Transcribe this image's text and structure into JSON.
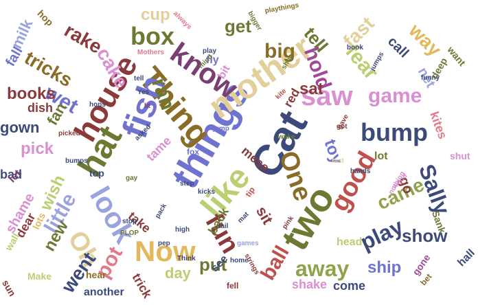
{
  "palette": {
    "navy": "#3b4a7a",
    "blue": "#6f73cf",
    "periwinkle": "#9ba3df",
    "olive": "#6b7a32",
    "green": "#8fa34a",
    "lime": "#b9cf72",
    "brown": "#8a6c26",
    "gold": "#e2b85a",
    "tan": "#e2cf99",
    "maroon": "#8a3a3a",
    "red": "#c0504d",
    "pink": "#e27a8a",
    "plum": "#7a3f72",
    "purple": "#a04a96",
    "orchid": "#d98fd0"
  },
  "words": [
    {
      "text": "Cat",
      "color": "navy"
    },
    {
      "text": "things",
      "color": "blue"
    },
    {
      "text": "Thing",
      "color": "brown"
    },
    {
      "text": "mother",
      "color": "tan"
    },
    {
      "text": "fish",
      "color": "blue"
    },
    {
      "text": "look",
      "color": "periwinkle"
    },
    {
      "text": "two",
      "color": "olive"
    },
    {
      "text": "hat",
      "color": "olive"
    },
    {
      "text": "house",
      "color": "maroon"
    },
    {
      "text": "Now",
      "color": "gold"
    },
    {
      "text": "like",
      "color": "lime"
    },
    {
      "text": "know",
      "color": "plum"
    },
    {
      "text": "good",
      "color": "red"
    },
    {
      "text": "One",
      "color": "brown"
    },
    {
      "text": "saw",
      "color": "orchid"
    },
    {
      "text": "bump",
      "color": "navy"
    },
    {
      "text": "fun",
      "color": "maroon"
    },
    {
      "text": "Oh",
      "color": "tan"
    },
    {
      "text": "play",
      "color": "navy"
    },
    {
      "text": "box",
      "color": "olive"
    },
    {
      "text": "game",
      "color": "orchid"
    },
    {
      "text": "Sally",
      "color": "navy"
    },
    {
      "text": "little",
      "color": "periwinkle"
    },
    {
      "text": "away",
      "color": "green"
    },
    {
      "text": "ball",
      "color": "red"
    },
    {
      "text": "came",
      "color": "green"
    },
    {
      "text": "pot",
      "color": "pink"
    },
    {
      "text": "fear",
      "color": "lime"
    },
    {
      "text": "hold",
      "color": "purple"
    },
    {
      "text": "fast",
      "color": "tan"
    },
    {
      "text": "ran",
      "color": "olive"
    },
    {
      "text": "big",
      "color": "brown"
    },
    {
      "text": "cake",
      "color": "orchid"
    },
    {
      "text": "wet",
      "color": "blue"
    },
    {
      "text": "tricks",
      "color": "brown"
    },
    {
      "text": "rake",
      "color": "maroon"
    },
    {
      "text": "show",
      "color": "navy"
    },
    {
      "text": "ship",
      "color": "blue"
    },
    {
      "text": "put",
      "color": "olive"
    },
    {
      "text": "sat",
      "color": "maroon"
    },
    {
      "text": "toy",
      "color": "blue"
    },
    {
      "text": "went",
      "color": "navy"
    },
    {
      "text": "wish",
      "color": "lime"
    },
    {
      "text": "pick",
      "color": "orchid"
    },
    {
      "text": "books",
      "color": "maroon"
    },
    {
      "text": "way",
      "color": "gold"
    },
    {
      "text": "tell",
      "color": "olive"
    },
    {
      "text": "get",
      "color": "olive"
    },
    {
      "text": "cup",
      "color": "tan"
    },
    {
      "text": "milk",
      "color": "periwinkle"
    },
    {
      "text": "fan",
      "color": "olive"
    },
    {
      "text": "new",
      "color": "olive"
    },
    {
      "text": "day",
      "color": "lime"
    },
    {
      "text": "sit",
      "color": "maroon"
    },
    {
      "text": "gown",
      "color": "navy"
    },
    {
      "text": "shame",
      "color": "orchid"
    },
    {
      "text": "call",
      "color": "navy"
    },
    {
      "text": "net",
      "color": "periwinkle"
    },
    {
      "text": "kites",
      "color": "pink"
    },
    {
      "text": "go",
      "color": "maroon"
    },
    {
      "text": "shake",
      "color": "orchid"
    },
    {
      "text": "come",
      "color": "navy"
    },
    {
      "text": "another",
      "color": "navy"
    },
    {
      "text": "fall",
      "color": "blue"
    },
    {
      "text": "trick",
      "color": "maroon"
    },
    {
      "text": "back",
      "color": "olive"
    },
    {
      "text": "dish",
      "color": "maroon"
    },
    {
      "text": "mess",
      "color": "maroon"
    },
    {
      "text": "tame",
      "color": "orchid"
    },
    {
      "text": "take",
      "color": "maroon"
    },
    {
      "text": "bad",
      "color": "navy"
    },
    {
      "text": "dear",
      "color": "maroon"
    },
    {
      "text": "red",
      "color": "maroon"
    },
    {
      "text": "bit",
      "color": "orchid"
    },
    {
      "text": "fly",
      "color": "blue"
    },
    {
      "text": "see",
      "color": "navy"
    },
    {
      "text": "lot",
      "color": "olive"
    },
    {
      "text": "head",
      "color": "lime"
    },
    {
      "text": "hall",
      "color": "navy"
    },
    {
      "text": "deep",
      "color": "olive"
    },
    {
      "text": "want",
      "color": "olive"
    },
    {
      "text": "shut",
      "color": "orchid"
    },
    {
      "text": "let",
      "color": "plum"
    },
    {
      "text": "wall",
      "color": "lime"
    },
    {
      "text": "top",
      "color": "navy"
    },
    {
      "text": "hear",
      "color": "brown"
    },
    {
      "text": "sun",
      "color": "maroon"
    },
    {
      "text": "Make",
      "color": "lime"
    },
    {
      "text": "hop",
      "color": "brown"
    },
    {
      "text": "lots",
      "color": "gold"
    },
    {
      "text": "Sank",
      "color": "olive"
    },
    {
      "text": "gone",
      "color": "purple"
    },
    {
      "text": "bet",
      "color": "brown"
    },
    {
      "text": "tip",
      "color": "red"
    },
    {
      "text": "mind",
      "color": "olive"
    },
    {
      "text": "kite",
      "color": "red"
    },
    {
      "text": "mat",
      "color": "navy"
    },
    {
      "text": "tail",
      "color": "navy"
    },
    {
      "text": "stop",
      "color": "navy"
    },
    {
      "text": "high",
      "color": "navy"
    },
    {
      "text": "pack",
      "color": "navy"
    },
    {
      "text": "Think",
      "color": "navy"
    },
    {
      "text": "home",
      "color": "navy"
    },
    {
      "text": "games",
      "color": "periwinkle"
    },
    {
      "text": "kicks",
      "color": "navy"
    },
    {
      "text": "step",
      "color": "navy"
    },
    {
      "text": "fox",
      "color": "blue"
    },
    {
      "text": "jump",
      "color": "blue"
    },
    {
      "text": "bumps",
      "color": "navy"
    },
    {
      "text": "picked",
      "color": "maroon"
    },
    {
      "text": "hops",
      "color": "navy"
    },
    {
      "text": "asked",
      "color": "navy"
    },
    {
      "text": "funny",
      "color": "navy"
    },
    {
      "text": "book",
      "color": "navy"
    },
    {
      "text": "jumps",
      "color": "navy"
    },
    {
      "text": "nothing",
      "color": "orchid"
    },
    {
      "text": "wood",
      "color": "orchid"
    },
    {
      "text": "fast",
      "color": "tan"
    },
    {
      "text": "hands",
      "color": "navy"
    },
    {
      "text": "strings",
      "color": "maroon"
    },
    {
      "text": "bigger",
      "color": "olive"
    },
    {
      "text": "shop",
      "color": "olive"
    },
    {
      "text": "Mothers",
      "color": "pink"
    },
    {
      "text": "always",
      "color": "pink"
    },
    {
      "text": "playthings",
      "color": "brown"
    },
    {
      "text": "wake",
      "color": "olive"
    },
    {
      "text": "fell",
      "color": "maroon"
    },
    {
      "text": "got",
      "color": "maroon"
    },
    {
      "text": "gave",
      "color": "maroon"
    },
    {
      "text": "Yes",
      "color": "navy"
    },
    {
      "text": "PLOP",
      "color": "olive"
    },
    {
      "text": "pink",
      "color": "maroon"
    },
    {
      "text": "tell",
      "color": "navy"
    },
    {
      "text": "lit",
      "color": "plum"
    },
    {
      "text": "gay",
      "color": "olive"
    },
    {
      "text": "pep",
      "color": "navy"
    },
    {
      "text": "play",
      "color": "navy"
    }
  ]
}
